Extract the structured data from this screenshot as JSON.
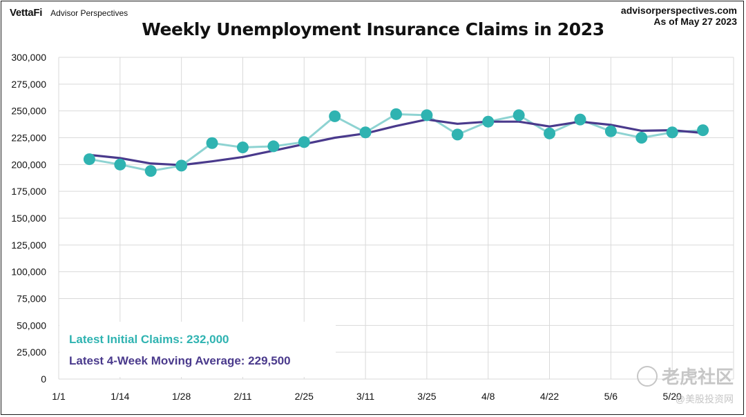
{
  "header": {
    "brand": "VettaFi",
    "brand_sub": "Advisor Perspectives",
    "site": "advisorperspectives.com",
    "asof": "As of May 27 2023"
  },
  "legend": {
    "initial_text": "Latest Initial Claims: 232,000",
    "average_text": "Latest 4-Week Moving Average: 229,500"
  },
  "watermark": {
    "text": "老虎社区",
    "subtext": "@美股投资网"
  },
  "colors": {
    "initial": "#8ed3d2",
    "initial_marker": "#2fb3b1",
    "average": "#4a3a8c",
    "grid": "#d9d9d9"
  },
  "chart_data": {
    "type": "line",
    "title": "Weekly Unemployment Insurance Claims in 2023",
    "xlabel": "",
    "ylabel": "",
    "ylim": [
      0,
      300000
    ],
    "y_ticks": [
      0,
      25000,
      50000,
      75000,
      100000,
      125000,
      150000,
      175000,
      200000,
      225000,
      250000,
      275000,
      300000
    ],
    "y_tick_labels": [
      "0",
      "25,000",
      "50,000",
      "75,000",
      "100,000",
      "125,000",
      "150,000",
      "175,000",
      "200,000",
      "225,000",
      "250,000",
      "275,000",
      "300,000"
    ],
    "x_tick_labels": [
      "1/1",
      "1/14",
      "1/28",
      "2/11",
      "2/25",
      "3/11",
      "3/25",
      "4/8",
      "4/22",
      "5/6",
      "5/20"
    ],
    "x_tick_positions": [
      0,
      1,
      2,
      3,
      4,
      5,
      6,
      7,
      8,
      9,
      10
    ],
    "x_range": [
      0,
      11
    ],
    "x": [
      0.5,
      1,
      1.5,
      2,
      2.5,
      3,
      3.5,
      4,
      4.5,
      5,
      5.5,
      6,
      6.5,
      7,
      7.5,
      8,
      8.5,
      9,
      9.5,
      10,
      10.5
    ],
    "grid": true,
    "series": [
      {
        "name": "Initial Claims",
        "values": [
          205000,
          200000,
          194000,
          199000,
          220000,
          216000,
          217000,
          221000,
          245000,
          230000,
          247000,
          246000,
          228000,
          240000,
          246000,
          229000,
          242000,
          231000,
          225000,
          230000,
          232000
        ]
      },
      {
        "name": "4-Week Moving Average",
        "values": [
          209000,
          206000,
          201000,
          199500,
          203000,
          207000,
          213000,
          219000,
          225000,
          229000,
          236000,
          242000,
          238000,
          240000,
          240000,
          235500,
          240000,
          237000,
          231500,
          232000,
          229500
        ]
      }
    ]
  }
}
